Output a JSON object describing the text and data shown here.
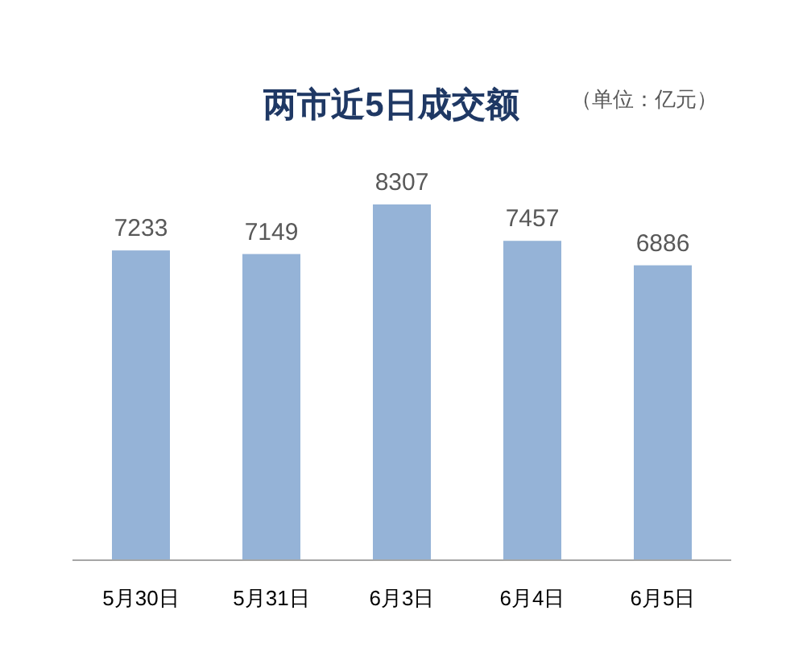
{
  "chart_data": {
    "type": "bar",
    "title": "两市近5日成交额",
    "annotations": [
      "（单位：亿元）"
    ],
    "categories": [
      "5月30日",
      "5月31日",
      "6月3日",
      "6月4日",
      "6月5日"
    ],
    "values": [
      7233,
      7149,
      8307,
      7457,
      6886
    ],
    "color": "#95b3d7",
    "data_labels": true
  }
}
